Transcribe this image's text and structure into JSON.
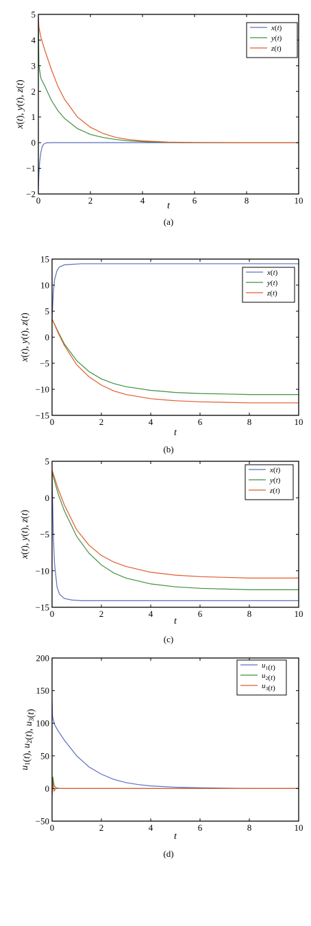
{
  "chart_data": [
    {
      "type": "line",
      "caption": "(a)",
      "xlabel": "t",
      "ylabel": "x(t), y(t), z(t)",
      "xlim": [
        0,
        10
      ],
      "ylim": [
        -2,
        5
      ],
      "xticks": [
        0,
        2,
        4,
        6,
        8,
        10
      ],
      "yticks": [
        -2,
        -1,
        0,
        1,
        2,
        3,
        4,
        5
      ],
      "legend": "top-right",
      "grid": false,
      "series": [
        {
          "name": "x(t)",
          "color": "#5b6fc0",
          "x": [
            0,
            0.02,
            0.05,
            0.1,
            0.15,
            0.2,
            0.3,
            0.5,
            1,
            10
          ],
          "y": [
            -1.8,
            -1.2,
            -0.75,
            -0.35,
            -0.15,
            -0.06,
            -0.01,
            0,
            0,
            0
          ]
        },
        {
          "name": "y(t)",
          "color": "#3f8f3f",
          "x": [
            0,
            0.02,
            0.1,
            0.25,
            0.5,
            0.75,
            1,
            1.5,
            2,
            2.5,
            3,
            3.5,
            4,
            5,
            6,
            8,
            10
          ],
          "y": [
            4.9,
            3.0,
            2.5,
            2.2,
            1.65,
            1.25,
            0.95,
            0.55,
            0.32,
            0.2,
            0.12,
            0.07,
            0.04,
            0.01,
            0,
            0,
            0
          ]
        },
        {
          "name": "z(t)",
          "color": "#e05a2b",
          "x": [
            0,
            0.02,
            0.1,
            0.25,
            0.5,
            0.75,
            1,
            1.5,
            2,
            2.5,
            3,
            3.5,
            4,
            5,
            6,
            8,
            10
          ],
          "y": [
            4.9,
            4.5,
            4.1,
            3.6,
            2.85,
            2.2,
            1.7,
            1.0,
            0.6,
            0.35,
            0.2,
            0.12,
            0.07,
            0.02,
            0.01,
            0,
            0
          ]
        }
      ]
    },
    {
      "type": "line",
      "caption": "(b)",
      "xlabel": "t",
      "ylabel": "x(t), y(t), z(t)",
      "xlim": [
        0,
        10
      ],
      "ylim": [
        -15,
        15
      ],
      "xticks": [
        0,
        2,
        4,
        6,
        8,
        10
      ],
      "yticks": [
        -15,
        -10,
        -5,
        0,
        5,
        10,
        15
      ],
      "legend": "top-right",
      "grid": false,
      "series": [
        {
          "name": "x(t)",
          "color": "#5b6fc0",
          "x": [
            0,
            0.05,
            0.1,
            0.2,
            0.3,
            0.5,
            0.8,
            1.2,
            2,
            10
          ],
          "y": [
            3.5,
            8.5,
            11,
            12.8,
            13.5,
            13.9,
            14.0,
            14.1,
            14.1,
            14.1
          ]
        },
        {
          "name": "y(t)",
          "color": "#3f8f3f",
          "x": [
            0,
            0.25,
            0.5,
            1,
            1.5,
            2,
            2.5,
            3,
            4,
            5,
            6,
            7,
            8,
            9,
            10
          ],
          "y": [
            3.5,
            1.0,
            -1.3,
            -4.5,
            -6.6,
            -8.0,
            -8.9,
            -9.5,
            -10.2,
            -10.6,
            -10.8,
            -10.9,
            -11.0,
            -11.0,
            -11.0
          ]
        },
        {
          "name": "z(t)",
          "color": "#e05a2b",
          "x": [
            0,
            0.25,
            0.5,
            1,
            1.5,
            2,
            2.5,
            3,
            4,
            5,
            6,
            7,
            8,
            9,
            10
          ],
          "y": [
            3.5,
            0.8,
            -1.6,
            -5.3,
            -7.6,
            -9.2,
            -10.3,
            -11.0,
            -11.8,
            -12.2,
            -12.4,
            -12.5,
            -12.6,
            -12.6,
            -12.6
          ]
        }
      ]
    },
    {
      "type": "line",
      "caption": "(c)",
      "xlabel": "t",
      "ylabel": "x(t), y(t), z(t)",
      "xlim": [
        0,
        10
      ],
      "ylim": [
        -15,
        5
      ],
      "xticks": [
        0,
        2,
        4,
        6,
        8,
        10
      ],
      "yticks": [
        -15,
        -10,
        -5,
        0,
        5
      ],
      "legend": "top-right",
      "grid": false,
      "series": [
        {
          "name": "x(t)",
          "color": "#5b6fc0",
          "x": [
            0,
            0.05,
            0.1,
            0.2,
            0.3,
            0.5,
            0.8,
            1.2,
            2,
            10
          ],
          "y": [
            3.5,
            -5,
            -9,
            -12.2,
            -13.2,
            -13.8,
            -14.0,
            -14.1,
            -14.1,
            -14.1
          ]
        },
        {
          "name": "y(t)",
          "color": "#3f8f3f",
          "x": [
            0,
            0.25,
            0.5,
            1,
            1.5,
            2,
            2.5,
            3,
            4,
            5,
            6,
            7,
            8,
            9,
            10
          ],
          "y": [
            3.5,
            0.5,
            -1.8,
            -5.3,
            -7.6,
            -9.2,
            -10.3,
            -11.0,
            -11.8,
            -12.2,
            -12.4,
            -12.5,
            -12.6,
            -12.6,
            -12.6
          ]
        },
        {
          "name": "z(t)",
          "color": "#e05a2b",
          "x": [
            0,
            0.25,
            0.5,
            1,
            1.5,
            2,
            2.5,
            3,
            4,
            5,
            6,
            7,
            8,
            9,
            10
          ],
          "y": [
            3.8,
            1.2,
            -1.0,
            -4.4,
            -6.5,
            -7.9,
            -8.8,
            -9.4,
            -10.2,
            -10.6,
            -10.8,
            -10.9,
            -11.0,
            -11.0,
            -11.0
          ]
        }
      ]
    },
    {
      "type": "line",
      "caption": "(d)",
      "xlabel": "t",
      "ylabel": "u1(t), u2(t), u3(t)",
      "xlim": [
        0,
        10
      ],
      "ylim": [
        -50,
        200
      ],
      "xticks": [
        0,
        2,
        4,
        6,
        8,
        10
      ],
      "yticks": [
        -50,
        0,
        50,
        100,
        150,
        200
      ],
      "legend": "top-right",
      "grid": false,
      "series": [
        {
          "name": "u1(t)",
          "color": "#5b6fc0",
          "x": [
            0,
            0.02,
            0.1,
            0.25,
            0.5,
            1,
            1.5,
            2,
            2.5,
            3,
            3.5,
            4,
            5,
            6,
            7,
            8,
            10
          ],
          "y": [
            135,
            110,
            98,
            88,
            74,
            50,
            33,
            22,
            14,
            9,
            6,
            4,
            2,
            1,
            0.5,
            0,
            0
          ]
        },
        {
          "name": "u2(t)",
          "color": "#3f8f3f",
          "x": [
            0,
            0.03,
            0.08,
            0.15,
            0.3,
            0.5,
            10
          ],
          "y": [
            -10,
            18,
            5,
            1,
            0,
            0,
            0
          ]
        },
        {
          "name": "u3(t)",
          "color": "#e05a2b",
          "x": [
            0,
            0.03,
            0.08,
            0.15,
            0.3,
            0.5,
            10
          ],
          "y": [
            -12,
            10,
            -4,
            0,
            0,
            0,
            0
          ]
        }
      ]
    }
  ]
}
